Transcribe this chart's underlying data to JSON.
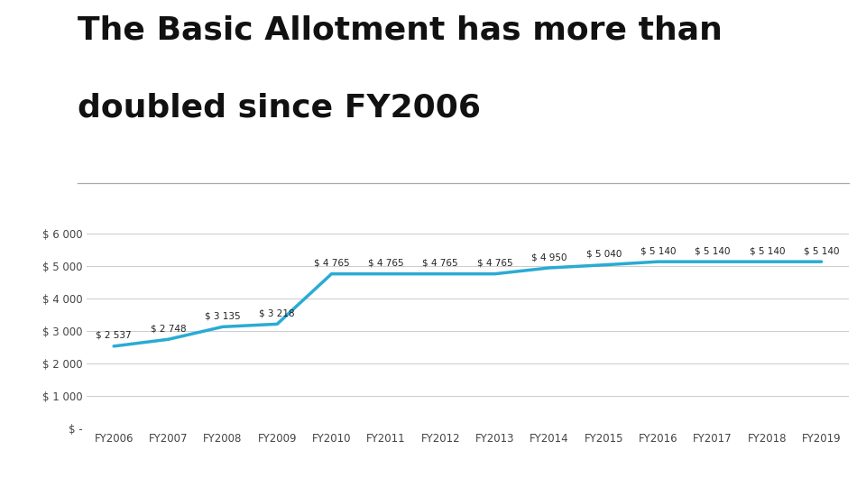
{
  "title_line1": "The Basic Allotment has more than",
  "title_line2": "doubled since FY2006",
  "categories": [
    "FY2006",
    "FY2007",
    "FY2008",
    "FY2009",
    "FY2010",
    "FY2011",
    "FY2012",
    "FY2013",
    "FY2014",
    "FY2015",
    "FY2016",
    "FY2017",
    "FY2018",
    "FY2019"
  ],
  "values": [
    2537,
    2748,
    3135,
    3218,
    4765,
    4765,
    4765,
    4765,
    4950,
    5040,
    5140,
    5140,
    5140,
    5140
  ],
  "line_color": "#29ABD4",
  "bg_color": "#FFFFFF",
  "label_fontsize": 7.5,
  "title_fontsize": 26,
  "ylabel_vals": [
    0,
    1000,
    2000,
    3000,
    4000,
    5000,
    6000
  ],
  "ylabel_labels": [
    "$ -",
    "$ 1 000",
    "$ 2 000",
    "$ 3 000",
    "$ 4 000",
    "$ 5 000",
    "$ 6 000"
  ],
  "footer_color": "#1B5EA6",
  "line_width": 2.5,
  "annotation_labels": [
    "$ 2 537",
    "$ 2 748",
    "$ 3 135",
    "$ 3 218",
    "$ 4 765",
    "$ 4 765",
    "$ 4 765",
    "$ 4 765",
    "$ 4 950",
    "$ 5 040",
    "$ 5 140",
    "$ 5 140",
    "$ 5 140",
    "$ 5 140"
  ]
}
